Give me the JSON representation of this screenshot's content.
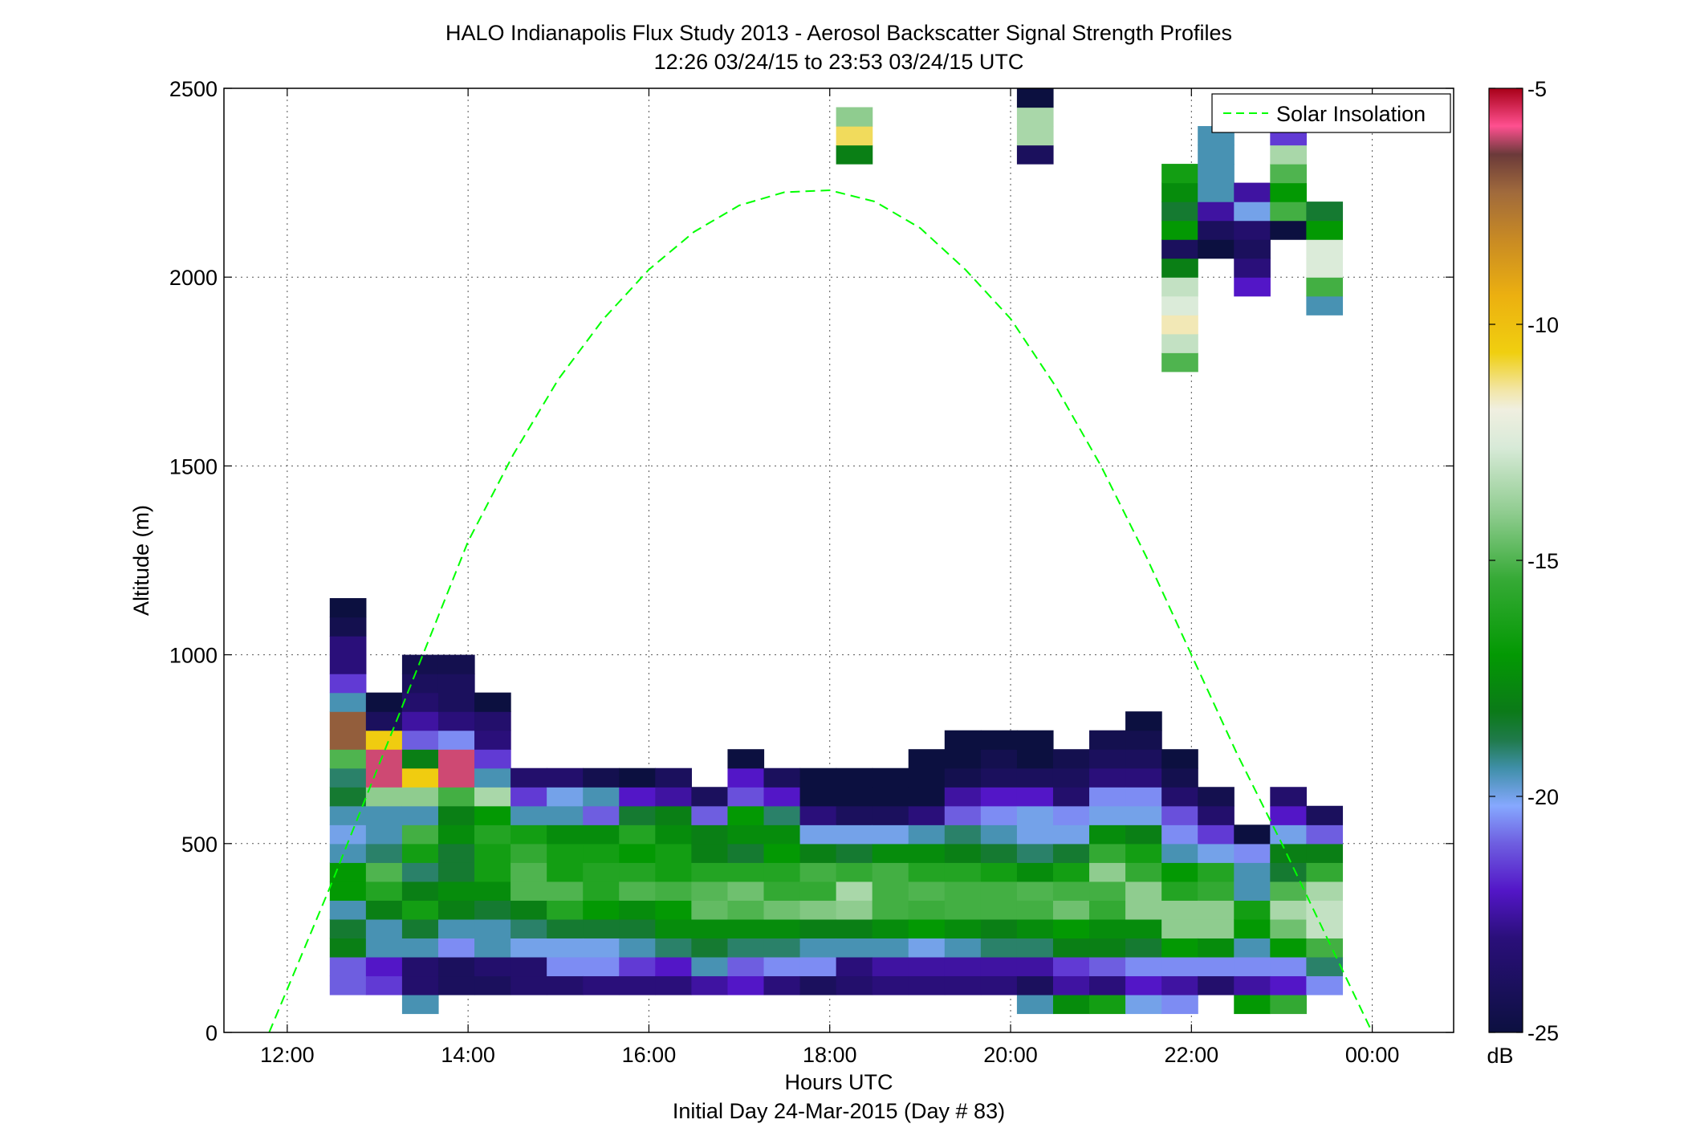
{
  "chart_data": {
    "type": "heatmap",
    "title": "HALO Indianapolis Flux Study 2013 - Aerosol Backscatter Signal Strength Profiles",
    "subtitle": "12:26 03/24/15 to 23:53 03/24/15  UTC",
    "xlabel": "Hours UTC",
    "xlabel2": "Initial Day 24-Mar-2015 (Day # 83)",
    "ylabel": "Altitude (m)",
    "xlim": [
      11.3,
      24.9
    ],
    "ylim": [
      0,
      2500
    ],
    "grid": true,
    "x_ticks": [
      12,
      14,
      16,
      18,
      20,
      22,
      24
    ],
    "x_tick_labels": [
      "12:00",
      "14:00",
      "16:00",
      "18:00",
      "20:00",
      "22:00",
      "00:00"
    ],
    "y_ticks": [
      0,
      500,
      1000,
      1500,
      2000,
      2500
    ],
    "y_tick_labels": [
      "0",
      "500",
      "1000",
      "1500",
      "2000",
      "2500"
    ],
    "colorbar": {
      "label": "dB",
      "range": [
        -25,
        -5
      ],
      "ticks": [
        -25,
        -20,
        -15,
        -10,
        -5
      ],
      "tick_labels": [
        "-25",
        "-20",
        "-15",
        "-10",
        "-5"
      ]
    },
    "legend": {
      "position": "top-right",
      "entries": [
        "Solar Insolation"
      ]
    },
    "cell_size": {
      "hours": 0.4,
      "meters": 50
    },
    "columns": [
      {
        "t": 12.67,
        "ybase": 100,
        "dB": [
          -21,
          -21,
          -18,
          -18.5,
          -19.5,
          -17,
          -17,
          -19.5,
          -20,
          -19.5,
          -18.5,
          -19,
          -15,
          -7,
          -7,
          -19.5,
          -21.5,
          -23,
          -23,
          -24.5,
          -25
        ]
      },
      {
        "t": 13.07,
        "ybase": 100,
        "dB": [
          -21.5,
          -22,
          -19.5,
          -19.5,
          -18,
          -16,
          -15,
          -19,
          -19.5,
          -19.5,
          -14,
          -6,
          -6,
          -10.5,
          -24,
          -25
        ]
      },
      {
        "t": 13.47,
        "ybase": 50,
        "dB": [
          -19.5,
          -23.5,
          -23.5,
          -19.5,
          -18.5,
          -16.5,
          -18,
          -19,
          -16.5,
          -15.2,
          -19.5,
          -14,
          -10.5,
          -18,
          -21,
          -22.5,
          -23.5,
          -24,
          -24.5
        ]
      },
      {
        "t": 13.87,
        "ybase": 100,
        "dB": [
          -24,
          -24,
          -20.5,
          -19.5,
          -18,
          -17.5,
          -18.5,
          -18.5,
          -17.5,
          -18,
          -15.2,
          -6,
          -6,
          -20.5,
          -23,
          -24,
          -24,
          -24.5
        ]
      },
      {
        "t": 14.27,
        "ybase": 100,
        "dB": [
          -24,
          -23.5,
          -19.5,
          -19.5,
          -18.5,
          -17.5,
          -16.5,
          -16.5,
          -16,
          -17,
          -13.5,
          -19.5,
          -21.5,
          -23,
          -23.5,
          -25
        ]
      },
      {
        "t": 14.67,
        "ybase": 100,
        "dB": [
          -23.5,
          -23.5,
          -20,
          -19,
          -18,
          -15,
          -15,
          -15.5,
          -16.5,
          -19.5,
          -21.5,
          -23.5
        ]
      },
      {
        "t": 15.07,
        "ybase": 100,
        "dB": [
          -23.5,
          -20.5,
          -20,
          -18.5,
          -16,
          -15,
          -16.5,
          -16.5,
          -17.5,
          -19.5,
          -20,
          -23.5
        ]
      },
      {
        "t": 15.47,
        "ybase": 100,
        "dB": [
          -23,
          -20.5,
          -20,
          -18.5,
          -17,
          -16,
          -16,
          -16.5,
          -17.5,
          -21,
          -19.5,
          -24.5
        ]
      },
      {
        "t": 15.87,
        "ybase": 100,
        "dB": [
          -23,
          -21.5,
          -19.5,
          -18.5,
          -17.5,
          -15,
          -16,
          -17,
          -16,
          -18.5,
          -22,
          -25
        ]
      },
      {
        "t": 16.27,
        "ybase": 100,
        "dB": [
          -23,
          -22,
          -19,
          -17.5,
          -17,
          -15.2,
          -16.5,
          -16.5,
          -17.5,
          -18,
          -22.5,
          -24
        ]
      },
      {
        "t": 16.67,
        "ybase": 100,
        "dB": [
          -22.5,
          -19.5,
          -18.5,
          -17.5,
          -14.7,
          -14.9,
          -16,
          -18,
          -18,
          -21,
          -24
        ]
      },
      {
        "t": 17.07,
        "ybase": 100,
        "dB": [
          -22,
          -21,
          -19,
          -17.5,
          -15,
          -14.5,
          -16,
          -18.5,
          -17.5,
          -17,
          -21.2,
          -22,
          -25
        ]
      },
      {
        "t": 17.47,
        "ybase": 100,
        "dB": [
          -23,
          -20.5,
          -19,
          -17.5,
          -14.5,
          -15.5,
          -16,
          -17,
          -17.5,
          -19,
          -22,
          -24
        ]
      },
      {
        "t": 17.87,
        "ybase": 100,
        "dB": [
          -24,
          -20.5,
          -19.5,
          -18,
          -14.2,
          -15.5,
          -15.2,
          -18,
          -20,
          -23,
          -25,
          -25
        ]
      },
      {
        "t": 18.27,
        "ybase": 100,
        "dB": [
          -23.5,
          -23,
          -19.5,
          -18,
          -14,
          -13.5,
          -15.5,
          -18.5,
          -20,
          -24,
          -25,
          -25
        ]
      },
      {
        "t": 18.67,
        "ybase": 100,
        "dB": [
          -23,
          -22.5,
          -19.5,
          -17.5,
          -15.2,
          -15.2,
          -15.2,
          -17.5,
          -20,
          -24,
          -25,
          -25
        ]
      },
      {
        "t": 19.07,
        "ybase": 100,
        "dB": [
          -23,
          -22.5,
          -20,
          -17,
          -15.3,
          -15,
          -16,
          -17.5,
          -19.5,
          -23,
          -25,
          -25,
          -25
        ]
      },
      {
        "t": 19.47,
        "ybase": 100,
        "dB": [
          -23,
          -22.5,
          -19.5,
          -17.5,
          -15.2,
          -15.2,
          -16,
          -18,
          -19,
          -21,
          -22.5,
          -24.5,
          -25,
          -25
        ]
      },
      {
        "t": 19.87,
        "ybase": 100,
        "dB": [
          -23,
          -22.5,
          -19,
          -18,
          -15.2,
          -15.2,
          -16.5,
          -18.5,
          -19.5,
          -20.5,
          -22,
          -24,
          -24.5,
          -25
        ]
      },
      {
        "t": 20.27,
        "ybase": 50,
        "dB": [
          -19.5,
          -24,
          -22.5,
          -19,
          -17.5,
          -15.2,
          -15,
          -17.5,
          -19,
          -20,
          -20,
          -22,
          -24,
          -25,
          -25
        ]
      },
      {
        "t": 20.67,
        "ybase": 50,
        "dB": [
          -17.5,
          -22.5,
          -21.5,
          -18,
          -17,
          -14.5,
          -15.2,
          -16.5,
          -18.5,
          -20,
          -20.5,
          -23.5,
          -24,
          -24.5
        ]
      },
      {
        "t": 21.07,
        "ybase": 50,
        "dB": [
          -16.5,
          -23,
          -21,
          -18,
          -17.5,
          -15.5,
          -15.2,
          -14,
          -15.5,
          -17.5,
          -20,
          -20.5,
          -23,
          -24,
          -24.5
        ]
      },
      {
        "t": 21.47,
        "ybase": 50,
        "dB": [
          -20,
          -22,
          -20.5,
          -18.5,
          -17.5,
          -14,
          -14,
          -15.5,
          -16.5,
          -18,
          -20,
          -20.5,
          -23,
          -24,
          -24.5,
          -25
        ]
      },
      {
        "t": 21.87,
        "ybase": 50,
        "dB": [
          -20.5,
          -22.5,
          -20.5,
          -17,
          -14,
          -14,
          -16,
          -17,
          -19.5,
          -20.5,
          -21.2,
          -23.5,
          -24.5,
          -25
        ]
      },
      {
        "t": 22.27,
        "ybase": 100,
        "dB": [
          -23.5,
          -20.5,
          -17.5,
          -14,
          -14,
          -15.5,
          -16,
          -20,
          -21.5,
          -23.5,
          -24.5
        ]
      },
      {
        "t": 22.67,
        "ybase": 50,
        "dB": [
          -17,
          -22.5,
          -20.5,
          -19.5,
          -17,
          -16.5,
          -19.5,
          -19.5,
          -20.5,
          -25
        ]
      },
      {
        "t": 23.07,
        "ybase": 50,
        "dB": [
          -15.5,
          -22,
          -20.5,
          -17,
          -14.5,
          -13.5,
          -15,
          -18.5,
          -18,
          -20,
          -22,
          -23.5
        ]
      },
      {
        "t": 23.47,
        "ybase": 100,
        "dB": [
          -20.5,
          -19,
          -15.2,
          -13,
          -13,
          -13.5,
          -15.5,
          -18,
          -21,
          -24
        ]
      }
    ],
    "upper_segments": [
      {
        "t": 18.27,
        "ybase": 2300,
        "dB": [
          -18,
          -11,
          -14
        ]
      },
      {
        "t": 20.27,
        "ybase": 2300,
        "dB": [
          -24,
          -13.5,
          -13.5,
          -25
        ]
      },
      {
        "t": 21.87,
        "ybase": 1750,
        "dB": [
          -15,
          -13,
          -11.5,
          -12.5,
          -13,
          -18,
          -24,
          -17,
          -18.5,
          -17.5,
          -16.5
        ]
      },
      {
        "t": 22.27,
        "ybase": 2050,
        "dB": [
          -25,
          -24,
          -22.5,
          -19.5,
          -19.5,
          -19.5,
          -19.5
        ]
      },
      {
        "t": 22.67,
        "ybase": 1950,
        "dB": [
          -22,
          -23,
          -24,
          -23.5,
          -20,
          -22.5
        ]
      },
      {
        "t": 23.07,
        "ybase": 2100,
        "dB": [
          -25,
          -15.2,
          -17,
          -15,
          -13.5,
          -21.5
        ]
      },
      {
        "t": 23.47,
        "ybase": 1900,
        "dB": [
          -19.5,
          -15.2,
          -12.5,
          -12.5,
          -17,
          -18.5
        ]
      }
    ],
    "series": [
      {
        "name": "Solar Insolation",
        "style": "dashed",
        "x": [
          11.8,
          12.5,
          13.0,
          13.5,
          14.0,
          14.5,
          15.0,
          15.5,
          16.0,
          16.5,
          17.0,
          17.5,
          18.0,
          18.5,
          19.0,
          19.5,
          20.0,
          20.5,
          21.0,
          21.5,
          22.0,
          22.5,
          23.0,
          23.5,
          24.0
        ],
        "y": [
          0,
          400,
          700,
          1000,
          1300,
          1530,
          1730,
          1890,
          2020,
          2120,
          2190,
          2225,
          2230,
          2200,
          2130,
          2020,
          1890,
          1710,
          1500,
          1260,
          1000,
          740,
          500,
          250,
          0
        ]
      }
    ]
  },
  "colors": {
    "grid": "#555555",
    "curve": "#00ff00",
    "colormap": [
      [
        0.0,
        "#0c1040"
      ],
      [
        0.1,
        "#2a0f7a"
      ],
      [
        0.15,
        "#5316c7"
      ],
      [
        0.2,
        "#6e5ee0"
      ],
      [
        0.24,
        "#86a8ff"
      ],
      [
        0.28,
        "#3f8fa8"
      ],
      [
        0.31,
        "#1f7a4a"
      ],
      [
        0.34,
        "#0b7a18"
      ],
      [
        0.4,
        "#039903"
      ],
      [
        0.48,
        "#36aa36"
      ],
      [
        0.55,
        "#8fcc8f"
      ],
      [
        0.62,
        "#d8ead8"
      ],
      [
        0.66,
        "#f0efe0"
      ],
      [
        0.68,
        "#f2e6a8"
      ],
      [
        0.72,
        "#f0cf10"
      ],
      [
        0.78,
        "#ecb010"
      ],
      [
        0.84,
        "#c88a24"
      ],
      [
        0.89,
        "#a06a3c"
      ],
      [
        0.93,
        "#6b3a3a"
      ],
      [
        0.96,
        "#ff5090"
      ],
      [
        1.0,
        "#a80018"
      ]
    ]
  }
}
